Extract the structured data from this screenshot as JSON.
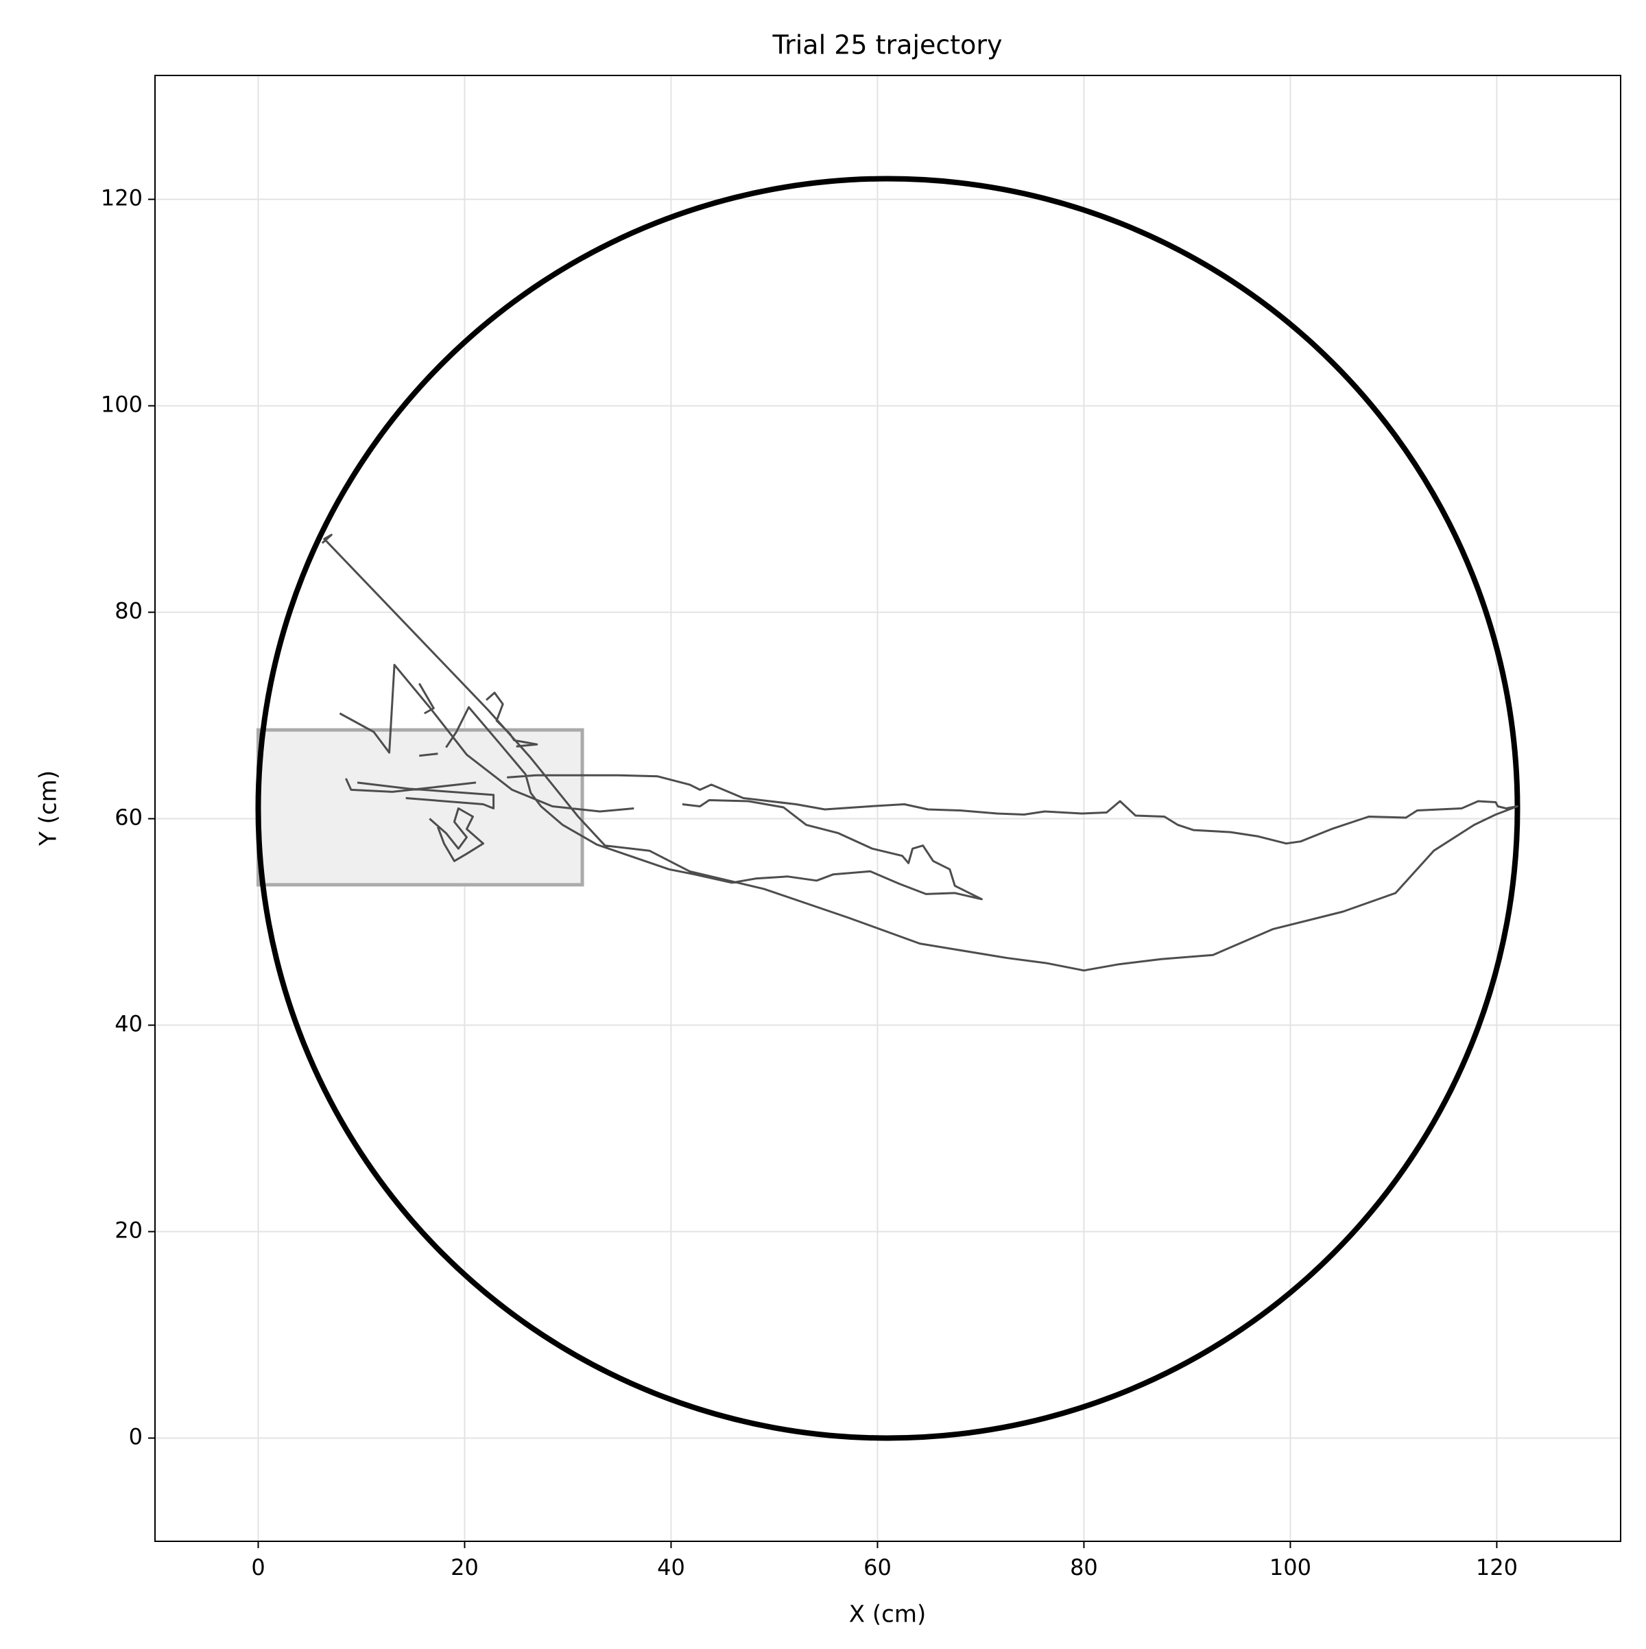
{
  "chart_data": {
    "type": "line",
    "title": "Trial 25 trajectory",
    "x_label": "X (cm)",
    "y_label": "Y (cm)",
    "xlim": [
      -10,
      132
    ],
    "ylim": [
      -10,
      132
    ],
    "xticks": [
      0,
      20,
      40,
      60,
      80,
      100,
      120
    ],
    "yticks": [
      0,
      20,
      40,
      60,
      80,
      100,
      120
    ],
    "grid": true,
    "color": "#4d4d4d",
    "arena": {
      "center": [
        61,
        61
      ],
      "radius": 61,
      "color": "#000000"
    },
    "zone": {
      "x": [
        0,
        31.4
      ],
      "y": [
        53.6,
        68.6
      ],
      "color": "#efefef",
      "edge_color": "#aaaaaa"
    },
    "x": [
      6.2,
      7.1,
      6.4,
      22.3,
      26.4,
      31.0,
      33.6,
      37.9,
      41.8,
      49.0,
      57.2,
      64.1,
      72.6,
      76.4,
      80.0,
      83.4,
      87.5,
      92.5,
      98.3,
      105.1,
      110.2,
      113.9,
      117.8,
      119.9,
      122.0,
      120.9,
      120.1,
      119.9,
      118.2,
      116.6,
      112.3,
      111.2,
      107.6,
      104.0,
      101.0,
      99.6,
      96.8,
      94.2,
      90.6,
      89.1,
      87.8,
      85.0,
      83.5,
      82.2,
      79.8,
      76.2,
      74.2,
      71.6,
      68.0,
      64.9,
      62.6,
      59.3,
      54.9,
      52.1,
      47.0,
      43.9,
      42.8,
      41.8,
      38.7,
      34.9,
      26.9,
      24.1,
      null,
      41.1,
      42.8,
      43.7,
      47.5,
      50.9,
      53.1,
      56.2,
      59.5,
      62.4,
      63.0,
      63.4,
      64.4,
      65.4,
      67.0,
      67.5,
      70.1,
      67.5,
      64.7,
      62.1,
      59.3,
      55.7,
      54.1,
      51.3,
      48.2,
      45.9,
      42.3,
      39.8,
      35.7,
      32.8,
      29.5,
      27.4,
      26.4,
      25.9,
      23.3,
      20.4,
      19.2,
      18.2,
      null,
      7.9,
      11.2,
      12.7,
      13.2,
      16.6,
      20.2,
      24.6,
      28.5,
      33.1,
      36.4,
      null,
      8.5,
      9.0,
      13.0,
      21.1,
      null,
      9.6,
      14.6,
      22.8,
      22.8,
      21.8,
      14.3,
      null,
      16.6,
      18.2,
      19.4,
      20.2,
      19.0,
      19.4,
      20.8,
      20.2,
      21.8,
      20.2,
      19.0,
      18.0,
      17.4,
      null,
      15.6,
      17.0,
      16.1,
      null,
      15.6,
      17.4,
      null,
      22.1,
      22.9,
      23.7,
      23.1,
      24.4,
      24.8,
      27.0,
      25.0
    ],
    "values": [
      86.7,
      87.5,
      87.1,
      70.5,
      65.9,
      60.2,
      57.4,
      56.9,
      54.9,
      53.2,
      50.4,
      47.9,
      46.5,
      46.0,
      45.3,
      45.9,
      46.4,
      46.8,
      49.3,
      51.0,
      52.8,
      56.9,
      59.4,
      60.4,
      61.2,
      61.0,
      61.2,
      61.6,
      61.7,
      61.0,
      60.8,
      60.1,
      60.2,
      59.0,
      57.8,
      57.6,
      58.3,
      58.7,
      58.9,
      59.4,
      60.2,
      60.3,
      61.7,
      60.6,
      60.5,
      60.7,
      60.4,
      60.5,
      60.8,
      60.9,
      61.4,
      61.2,
      60.9,
      61.4,
      62.0,
      63.3,
      62.8,
      63.3,
      64.1,
      64.2,
      64.2,
      64.0,
      null,
      61.4,
      61.2,
      61.8,
      61.7,
      61.1,
      59.4,
      58.6,
      57.1,
      56.4,
      55.7,
      57.1,
      57.4,
      55.9,
      55.1,
      53.5,
      52.2,
      52.8,
      52.7,
      53.7,
      54.9,
      54.6,
      54.0,
      54.4,
      54.2,
      53.8,
      54.6,
      55.1,
      56.5,
      57.5,
      59.4,
      61.2,
      62.5,
      64.3,
      67.4,
      70.8,
      68.4,
      66.9,
      null,
      70.2,
      68.4,
      66.4,
      74.9,
      70.8,
      66.2,
      62.8,
      61.2,
      60.7,
      61.0,
      null,
      63.9,
      62.8,
      62.6,
      63.5,
      null,
      63.5,
      62.9,
      62.3,
      61.0,
      61.4,
      62.0,
      null,
      60.0,
      58.6,
      57.1,
      58.2,
      59.7,
      61.0,
      60.2,
      59.0,
      57.6,
      56.6,
      55.9,
      57.6,
      59.2,
      null,
      73.1,
      70.7,
      70.2,
      null,
      66.1,
      66.3,
      null,
      71.5,
      72.2,
      71.1,
      69.5,
      68.2,
      67.6,
      67.2,
      67.0
    ]
  }
}
